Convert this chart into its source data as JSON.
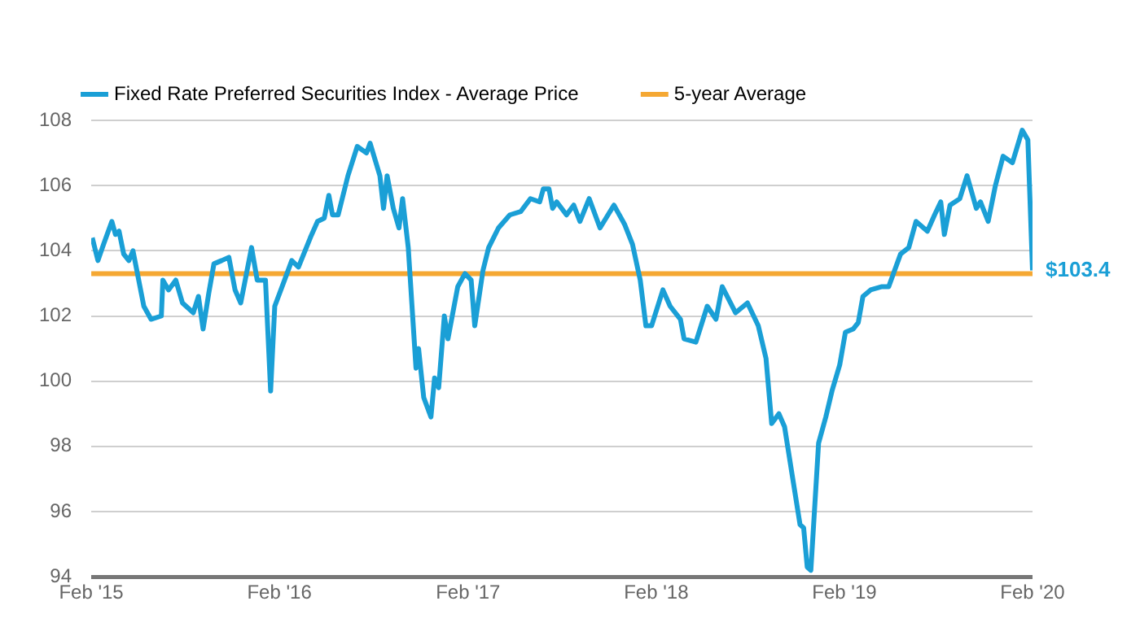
{
  "chart_data": {
    "type": "line",
    "legend": "top",
    "grid": "y",
    "marker": "none",
    "line_style": "solid",
    "xlim": [
      "2015-02-01",
      "2020-02-01"
    ],
    "xticks": [
      {
        "value": "2015-02-01",
        "label": "Feb '15"
      },
      {
        "value": "2016-02-01",
        "label": "Feb '16"
      },
      {
        "value": "2017-02-01",
        "label": "Feb '17"
      },
      {
        "value": "2018-02-01",
        "label": "Feb '18"
      },
      {
        "value": "2019-02-01",
        "label": "Feb '19"
      },
      {
        "value": "2020-02-01",
        "label": "Feb '20"
      }
    ],
    "ylim": [
      94,
      108
    ],
    "yticks": [
      94,
      96,
      98,
      100,
      102,
      104,
      106,
      108
    ],
    "series": [
      {
        "name": "Fixed Rate Preferred Securities Index - Average Price",
        "color": "#1a9fd6",
        "x": [
          "2015-02-03",
          "2015-02-14",
          "2015-02-25",
          "2015-03-13",
          "2015-03-20",
          "2015-03-27",
          "2015-04-05",
          "2015-04-15",
          "2015-04-23",
          "2015-05-14",
          "2015-05-28",
          "2015-06-17",
          "2015-06-20",
          "2015-07-01",
          "2015-07-15",
          "2015-07-28",
          "2015-08-18",
          "2015-08-28",
          "2015-09-06",
          "2015-09-17",
          "2015-09-27",
          "2015-10-12",
          "2015-10-26",
          "2015-11-07",
          "2015-11-18",
          "2015-12-09",
          "2015-12-20",
          "2016-01-05",
          "2016-01-15",
          "2016-01-23",
          "2016-02-11",
          "2016-02-25",
          "2016-03-09",
          "2016-04-01",
          "2016-04-15",
          "2016-04-28",
          "2016-05-07",
          "2016-05-14",
          "2016-05-25",
          "2016-06-13",
          "2016-07-01",
          "2016-07-19",
          "2016-07-26",
          "2016-08-14",
          "2016-08-21",
          "2016-08-28",
          "2016-09-09",
          "2016-09-20",
          "2016-09-27",
          "2016-10-08",
          "2016-10-23",
          "2016-10-28",
          "2016-11-07",
          "2016-11-21",
          "2016-11-28",
          "2016-12-06",
          "2016-12-17",
          "2016-12-24",
          "2017-01-12",
          "2017-01-26",
          "2017-02-07",
          "2017-02-14",
          "2017-03-02",
          "2017-03-13",
          "2017-04-01",
          "2017-04-23",
          "2017-05-14",
          "2017-06-02",
          "2017-06-20",
          "2017-06-27",
          "2017-07-08",
          "2017-07-15",
          "2017-07-23",
          "2017-08-11",
          "2017-08-25",
          "2017-09-06",
          "2017-09-24",
          "2017-10-15",
          "2017-11-11",
          "2017-12-02",
          "2017-12-17",
          "2018-01-01",
          "2018-01-12",
          "2018-01-23",
          "2018-02-14",
          "2018-02-28",
          "2018-03-20",
          "2018-03-27",
          "2018-04-19",
          "2018-05-11",
          "2018-05-28",
          "2018-06-09",
          "2018-07-05",
          "2018-07-28",
          "2018-08-18",
          "2018-09-02",
          "2018-09-13",
          "2018-09-27",
          "2018-10-08",
          "2018-10-23",
          "2018-11-07",
          "2018-11-14",
          "2018-11-21",
          "2018-11-28",
          "2018-12-13",
          "2018-12-27",
          "2019-01-08",
          "2019-01-23",
          "2019-02-03",
          "2019-02-18",
          "2019-02-28",
          "2019-03-09",
          "2019-03-24",
          "2019-04-15",
          "2019-04-28",
          "2019-05-21",
          "2019-06-06",
          "2019-06-20",
          "2019-07-12",
          "2019-07-26",
          "2019-08-07",
          "2019-08-14",
          "2019-08-25",
          "2019-09-13",
          "2019-09-27",
          "2019-10-15",
          "2019-10-23",
          "2019-11-07",
          "2019-11-21",
          "2019-12-06",
          "2019-12-24",
          "2020-01-12",
          "2020-01-23",
          "2020-02-01"
        ],
        "values": [
          104.4,
          103.7,
          104.2,
          104.9,
          104.5,
          104.6,
          103.9,
          103.7,
          104.0,
          102.3,
          101.9,
          102.0,
          103.1,
          102.8,
          103.1,
          102.4,
          102.1,
          102.6,
          101.6,
          102.7,
          103.6,
          103.7,
          103.8,
          102.8,
          102.4,
          104.1,
          103.1,
          103.1,
          99.7,
          102.3,
          103.1,
          103.7,
          103.5,
          104.4,
          104.9,
          105.0,
          105.7,
          105.1,
          105.1,
          106.3,
          107.2,
          107.0,
          107.3,
          106.3,
          105.3,
          106.3,
          105.3,
          104.7,
          105.6,
          104.1,
          100.4,
          101.0,
          99.5,
          98.9,
          100.1,
          99.8,
          102.0,
          101.3,
          102.9,
          103.3,
          103.1,
          101.7,
          103.4,
          104.1,
          104.7,
          105.1,
          105.2,
          105.6,
          105.5,
          105.9,
          105.9,
          105.3,
          105.5,
          105.1,
          105.4,
          104.9,
          105.6,
          104.7,
          105.4,
          104.8,
          104.2,
          103.1,
          101.7,
          101.7,
          102.8,
          102.3,
          101.9,
          101.3,
          101.2,
          102.3,
          101.9,
          102.9,
          102.1,
          102.4,
          101.7,
          100.7,
          98.7,
          99.0,
          98.6,
          97.1,
          95.6,
          95.5,
          94.3,
          94.2,
          98.1,
          98.9,
          99.7,
          100.5,
          101.5,
          101.6,
          101.8,
          102.6,
          102.8,
          102.9,
          102.9,
          103.9,
          104.1,
          104.9,
          104.6,
          105.1,
          105.5,
          104.5,
          105.4,
          105.6,
          106.3,
          105.3,
          105.5,
          104.9,
          106.0,
          106.9,
          106.7,
          107.7,
          107.4,
          103.4
        ]
      },
      {
        "name": "5-year Average",
        "color": "#f5a833",
        "x": [
          "2015-02-01",
          "2020-02-01"
        ],
        "values": [
          103.3,
          103.3
        ]
      }
    ],
    "annotations": [
      {
        "text": "$103.4",
        "x": "2020-02-01",
        "y": 103.4
      }
    ]
  }
}
